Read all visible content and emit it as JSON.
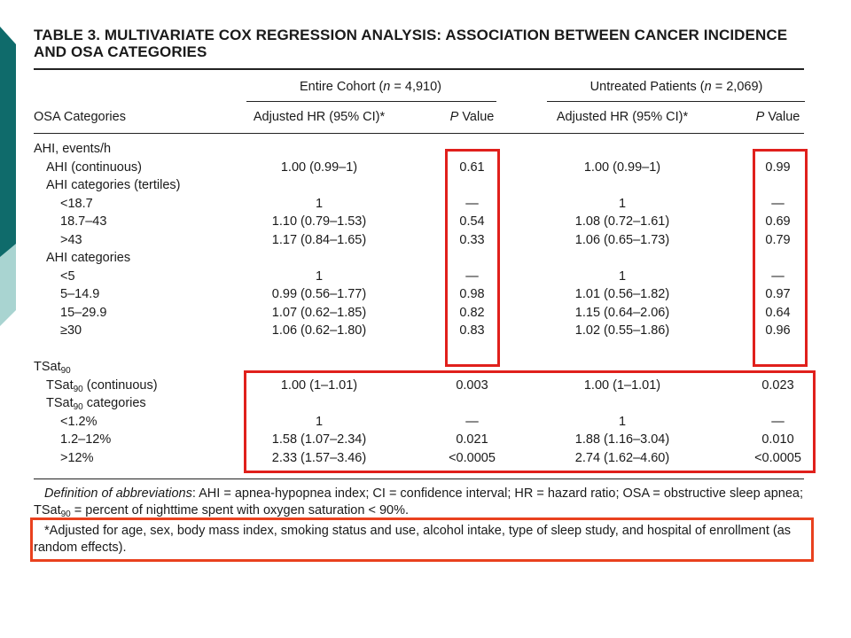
{
  "title": "TABLE 3. MULTIVARIATE COX REGRESSION ANALYSIS: ASSOCIATION BETWEEN CANCER INCIDENCE AND OSA CATEGORIES",
  "group_headers": {
    "entire": {
      "label": "Entire Cohort (",
      "n": "n",
      "value": " = 4,910)"
    },
    "untreated": {
      "label": "Untreated Patients (",
      "n": "n",
      "value": " = 2,069)"
    }
  },
  "columns": {
    "category": "OSA Categories",
    "hr": "Adjusted HR (95% CI)*",
    "p_letter": "P",
    "p_rest": " Value"
  },
  "rows": [
    {
      "label": "AHI, events/h",
      "indent": 0,
      "hr1": "",
      "p1": "",
      "hr2": "",
      "p2": ""
    },
    {
      "label": "AHI (continuous)",
      "indent": 1,
      "hr1": "1.00 (0.99–1)",
      "p1": "0.61",
      "hr2": "1.00 (0.99–1)",
      "p2": "0.99"
    },
    {
      "label": "AHI categories (tertiles)",
      "indent": 1,
      "hr1": "",
      "p1": "",
      "hr2": "",
      "p2": ""
    },
    {
      "label": "<18.7",
      "indent": 2,
      "hr1": "1",
      "p1": "—",
      "hr2": "1",
      "p2": "—"
    },
    {
      "label": "18.7–43",
      "indent": 2,
      "hr1": "1.10 (0.79–1.53)",
      "p1": "0.54",
      "hr2": "1.08 (0.72–1.61)",
      "p2": "0.69"
    },
    {
      "label": ">43",
      "indent": 2,
      "hr1": "1.17 (0.84–1.65)",
      "p1": "0.33",
      "hr2": "1.06 (0.65–1.73)",
      "p2": "0.79"
    },
    {
      "label": "AHI categories",
      "indent": 1,
      "hr1": "",
      "p1": "",
      "hr2": "",
      "p2": ""
    },
    {
      "label": "<5",
      "indent": 2,
      "hr1": "1",
      "p1": "—",
      "hr2": "1",
      "p2": "—"
    },
    {
      "label": "5–14.9",
      "indent": 2,
      "hr1": "0.99 (0.56–1.77)",
      "p1": "0.98",
      "hr2": "1.01 (0.56–1.82)",
      "p2": "0.97"
    },
    {
      "label": "15–29.9",
      "indent": 2,
      "hr1": "1.07 (0.62–1.85)",
      "p1": "0.82",
      "hr2": "1.15 (0.64–2.06)",
      "p2": "0.64"
    },
    {
      "label": "≥30",
      "indent": 2,
      "hr1": "1.06 (0.62–1.80)",
      "p1": "0.83",
      "hr2": "1.02 (0.55–1.86)",
      "p2": "0.96"
    }
  ],
  "tsat_rows": [
    {
      "label": "TSat",
      "sub": "90",
      "suffix": "",
      "indent": 0,
      "hr1": "",
      "p1": "",
      "hr2": "",
      "p2": ""
    },
    {
      "label": "TSat",
      "sub": "90",
      "suffix": " (continuous)",
      "indent": 1,
      "hr1": "1.00 (1–1.01)",
      "p1": "0.003",
      "hr2": "1.00 (1–1.01)",
      "p2": "0.023"
    },
    {
      "label": "TSat",
      "sub": "90",
      "suffix": " categories",
      "indent": 1,
      "hr1": "",
      "p1": "",
      "hr2": "",
      "p2": ""
    },
    {
      "label": "<1.2%",
      "sub": "",
      "suffix": "",
      "indent": 2,
      "hr1": "1",
      "p1": "—",
      "hr2": "1",
      "p2": "—"
    },
    {
      "label": "1.2–12%",
      "sub": "",
      "suffix": "",
      "indent": 2,
      "hr1": "1.58 (1.07–2.34)",
      "p1": "0.021",
      "hr2": "1.88 (1.16–3.04)",
      "p2": "0.010"
    },
    {
      "label": ">12%",
      "sub": "",
      "suffix": "",
      "indent": 2,
      "hr1": "2.33 (1.57–3.46)",
      "p1": "<0.0005",
      "hr2": "2.74 (1.62–4.60)",
      "p2": "<0.0005"
    }
  ],
  "footnotes": {
    "definitions_label": "Definition of abbreviations",
    "definitions_text": ": AHI = apnea-hypopnea index; CI = confidence interval; HR = hazard ratio; OSA = obstructive sleep apnea; TSat",
    "definitions_sub": "90",
    "definitions_end": " = percent of nighttime spent with oxygen saturation < 90%.",
    "adjusted": "*Adjusted for age, sex, body mass index, smoking status and use, alcohol intake, type of sleep study, and hospital of enrollment (as random effects)."
  },
  "colors": {
    "highlight": "#e0201c",
    "highlight_orange": "#e9411e",
    "deco_dark": "#0f6b6b",
    "deco_light": "#a9d4d1"
  }
}
